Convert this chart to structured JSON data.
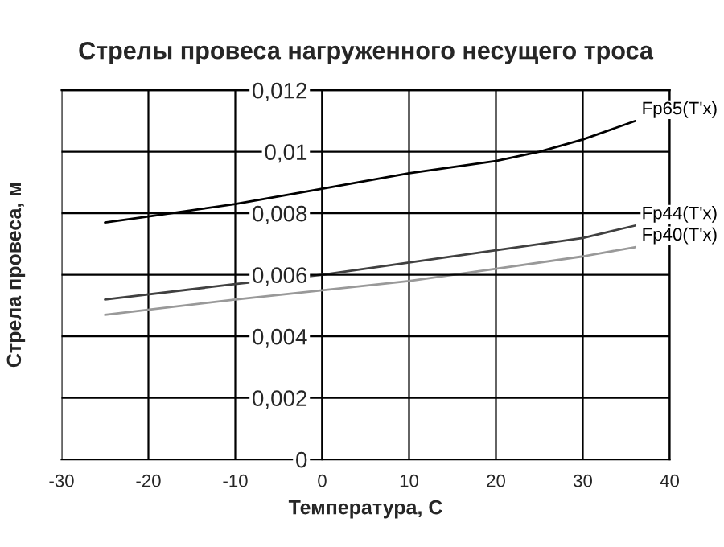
{
  "chart_data": {
    "type": "line",
    "title": "Стрелы провеса нагруженного несущего троса",
    "xlabel": "Температура, С",
    "ylabel": "Стрела провеса, м",
    "xlim": [
      -30,
      40
    ],
    "xticks": [
      -30,
      -20,
      -10,
      0,
      10,
      20,
      30,
      40
    ],
    "ylim": [
      0,
      0.012
    ],
    "yticks": [
      {
        "value": 0,
        "label": "0"
      },
      {
        "value": 0.002,
        "label": "0,002"
      },
      {
        "value": 0.004,
        "label": "0,004"
      },
      {
        "value": 0.006,
        "label": "0,006"
      },
      {
        "value": 0.008,
        "label": "0,008"
      },
      {
        "value": 0.01,
        "label": "0,01"
      },
      {
        "value": 0.012,
        "label": "0,012"
      }
    ],
    "grid": true,
    "marker": "none",
    "line_style": "solid",
    "series": [
      {
        "name": "Fp65(T'x)",
        "color": "#000000",
        "x": [
          -25,
          -20,
          -10,
          0,
          10,
          20,
          25,
          30,
          36
        ],
        "values": [
          0.0077,
          0.0079,
          0.0083,
          0.0088,
          0.0093,
          0.0097,
          0.01,
          0.0104,
          0.011
        ]
      },
      {
        "name": "Fp44(T'x)",
        "color": "#404040",
        "x": [
          -25,
          -10,
          0,
          10,
          20,
          30,
          36
        ],
        "values": [
          0.0052,
          0.0057,
          0.006,
          0.0064,
          0.0068,
          0.0072,
          0.0076
        ]
      },
      {
        "name": "Fp40(T'x)",
        "color": "#999999",
        "x": [
          -25,
          -10,
          0,
          10,
          20,
          30,
          36
        ],
        "values": [
          0.0047,
          0.0052,
          0.0055,
          0.0058,
          0.0062,
          0.0066,
          0.0069
        ]
      }
    ]
  }
}
